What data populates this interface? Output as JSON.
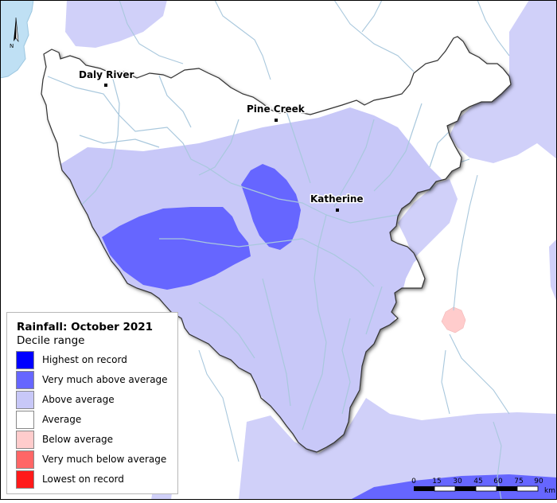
{
  "map": {
    "towns": [
      {
        "name": "Daly River"
      },
      {
        "name": "Pine Creek"
      },
      {
        "name": "Katherine"
      }
    ],
    "north_label": "N",
    "scale": {
      "ticks": [
        "0",
        "15",
        "30",
        "45",
        "60",
        "75",
        "90"
      ],
      "unit": "km"
    }
  },
  "legend": {
    "title": "Rainfall: October 2021",
    "subtitle": "Decile range",
    "items": [
      {
        "label": "Highest on record",
        "color": "#0000ff"
      },
      {
        "label": "Very much above average",
        "color": "#6666ff"
      },
      {
        "label": "Above average",
        "color": "#c8c8f8"
      },
      {
        "label": "Average",
        "color": "#ffffff"
      },
      {
        "label": "Below average",
        "color": "#ffcccc"
      },
      {
        "label": "Very much below average",
        "color": "#ff6666"
      },
      {
        "label": "Lowest on record",
        "color": "#ff1a1a"
      }
    ]
  },
  "colors": {
    "water": "#bfe0f4",
    "river": "#a9c8dd",
    "border": "#000000"
  }
}
